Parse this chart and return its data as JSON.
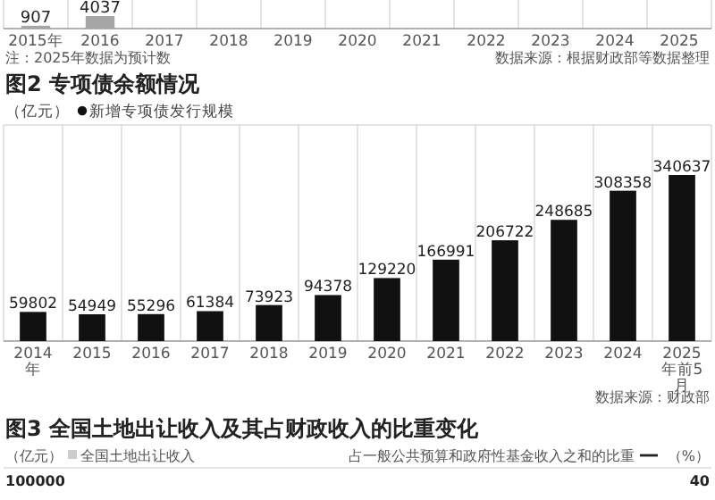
{
  "chart_data": [
    {
      "type": "bar",
      "categories": [
        "2015年",
        "2016",
        "2017",
        "2018",
        "2019",
        "2020",
        "2021",
        "2022",
        "2023",
        "2024",
        "2025"
      ],
      "values": [
        907,
        4037,
        null,
        null,
        null,
        null,
        null,
        null,
        null,
        null,
        null
      ],
      "data_labels": true,
      "color": "#a6a6a6",
      "grid": "x",
      "annotations": [
        "注：2025年数据为预计数",
        "数据来源：根据财政部等数据整理"
      ]
    },
    {
      "type": "bar",
      "title": "图2 专项债余额情况",
      "ylabel": "（亿元）",
      "categories": [
        "2014年",
        "2015",
        "2016",
        "2017",
        "2018",
        "2019",
        "2020",
        "2021",
        "2022",
        "2023",
        "2024",
        "2025年前5月"
      ],
      "series": [
        {
          "name": "新增专项债发行规模",
          "color": "#111111",
          "values": [
            59802,
            54949,
            55296,
            61384,
            73923,
            94378,
            129220,
            166991,
            206722,
            248685,
            308358,
            340637
          ]
        }
      ],
      "data_labels": true,
      "legend": "top left",
      "grid": "x",
      "annotations": [
        "数据来源：财政部"
      ]
    },
    {
      "type": "other",
      "title": "图3 全国土地出让收入及其占财政收入的比重变化",
      "ylabel": "（亿元）",
      "y2label": "（%）",
      "annotations": [
        "全国土地出让收入",
        "占一般公共预算和政府性基金收入之和的比重",
        "100000",
        "40"
      ]
    }
  ]
}
